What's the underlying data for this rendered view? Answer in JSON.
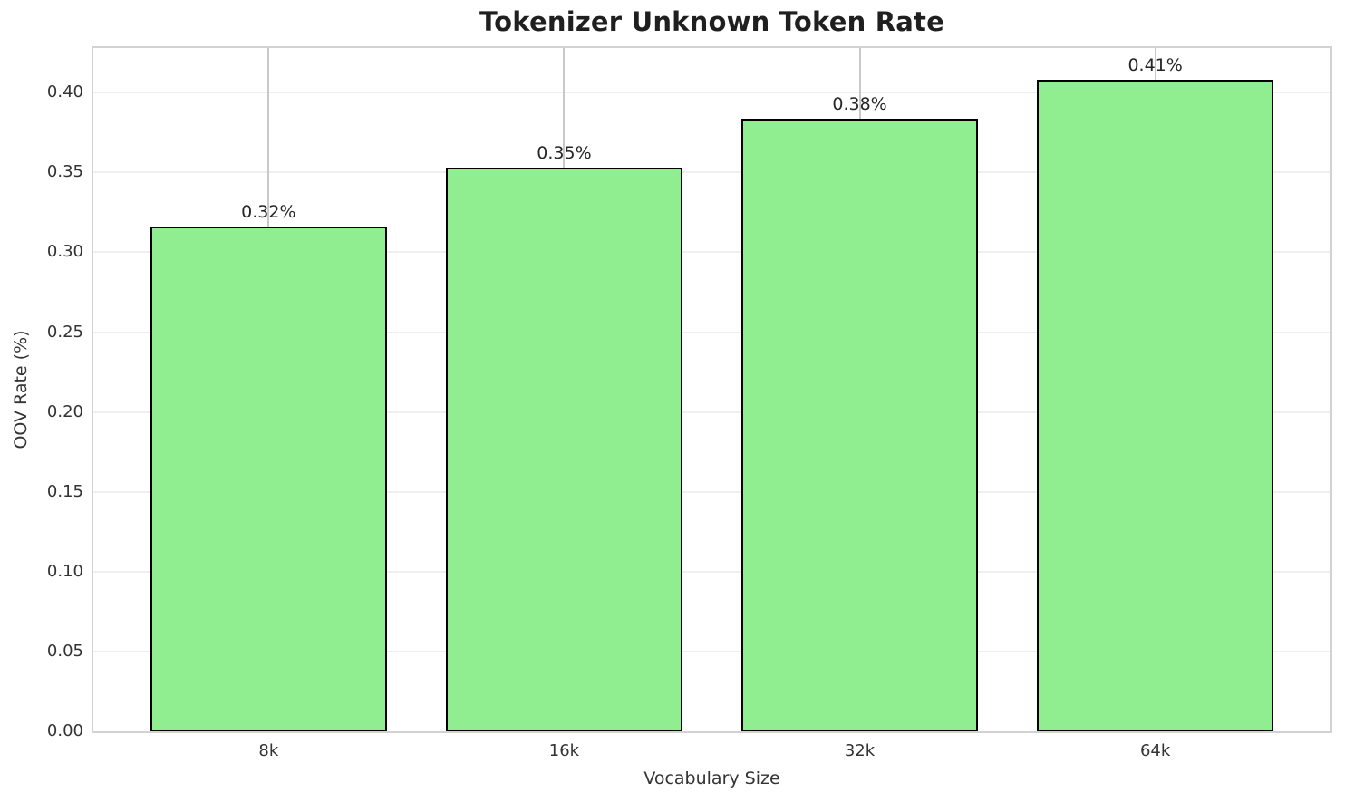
{
  "chart_data": {
    "type": "bar",
    "title": "Tokenizer Unknown Token Rate",
    "xlabel": "Vocabulary Size",
    "ylabel": "OOV Rate (%)",
    "categories": [
      "8k",
      "16k",
      "32k",
      "64k"
    ],
    "values": [
      0.316,
      0.353,
      0.384,
      0.408
    ],
    "bar_labels": [
      "0.32%",
      "0.35%",
      "0.38%",
      "0.41%"
    ],
    "yticks": [
      0.0,
      0.05,
      0.1,
      0.15,
      0.2,
      0.25,
      0.3,
      0.35,
      0.4
    ],
    "ytick_labels": [
      "0.00",
      "0.05",
      "0.10",
      "0.15",
      "0.20",
      "0.25",
      "0.30",
      "0.35",
      "0.40"
    ],
    "ylim": [
      0,
      0.428
    ],
    "xlim": [
      -0.593,
      3.593
    ],
    "bar_width_fraction": 0.8,
    "grid": "both",
    "legend_position": "none",
    "colors": {
      "bar_fill": "#90EE90",
      "bar_edge": "#000000",
      "grid_horizontal": "#efefef",
      "grid_vertical": "#c9c9c9",
      "spine": "#d2d2d2",
      "title_text": "#1f1f1f",
      "tick_text": "#333333"
    }
  }
}
